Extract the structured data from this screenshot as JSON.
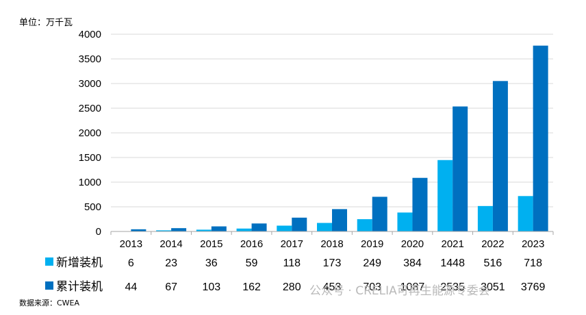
{
  "unit_label": "单位：万千瓦",
  "source_label": "数据来源：CWEA",
  "watermark": "公众号 · CRELIA可再生能源专委会",
  "colors": {
    "new_installed": "#00b0f0",
    "cumulative": "#0070c0",
    "grid": "#d9d9d9",
    "axis": "#a6a6a6"
  },
  "chart_data": {
    "type": "bar",
    "categories": [
      "2013",
      "2014",
      "2015",
      "2016",
      "2017",
      "2018",
      "2019",
      "2020",
      "2021",
      "2022",
      "2023"
    ],
    "series": [
      {
        "name": "新增装机",
        "values": [
          6,
          23,
          36,
          59,
          118,
          173,
          249,
          384,
          1448,
          516,
          718
        ]
      },
      {
        "name": "累计装机",
        "values": [
          44,
          67,
          103,
          162,
          280,
          453,
          703,
          1087,
          2535,
          3051,
          3769
        ]
      }
    ],
    "ylim": [
      0,
      4000
    ],
    "yticks": [
      0,
      500,
      1000,
      1500,
      2000,
      2500,
      3000,
      3500,
      4000
    ],
    "grid": true,
    "legend": "data-table-left",
    "xlabel": "",
    "ylabel": "单位：万千瓦"
  }
}
